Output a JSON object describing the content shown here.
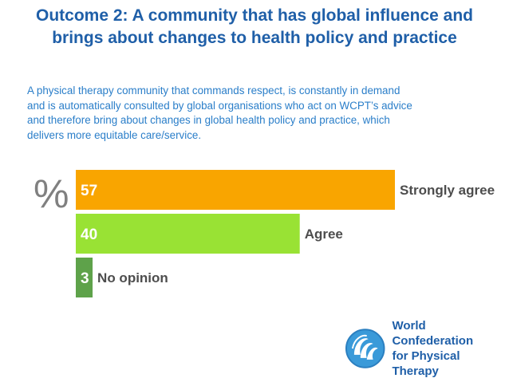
{
  "header": {
    "title_line1": "Outcome 2: A community that has global influence and",
    "title_line2": "brings about changes to health policy and practice"
  },
  "description": {
    "lines": [
      "A physical therapy community that commands respect, is constantly in demand",
      "and is automatically consulted by global organisations who act on WCPT’s advice",
      "and therefore bring about changes in global health policy and practice, which",
      "delivers more equitable care/service."
    ]
  },
  "chart_data": {
    "type": "bar",
    "orientation": "horizontal",
    "unit_label": "%",
    "categories": [
      "Strongly agree",
      "Agree",
      "No opinion"
    ],
    "values": [
      57,
      40,
      3
    ],
    "colors": [
      "#f9a500",
      "#99e234",
      "#5ea24a"
    ],
    "xlim": [
      0,
      60
    ],
    "title": "",
    "xlabel": "",
    "ylabel": "%"
  },
  "logo": {
    "name": "wcpt-logo-icon",
    "line1": "World Confederation",
    "line2": "for Physical Therapy"
  }
}
